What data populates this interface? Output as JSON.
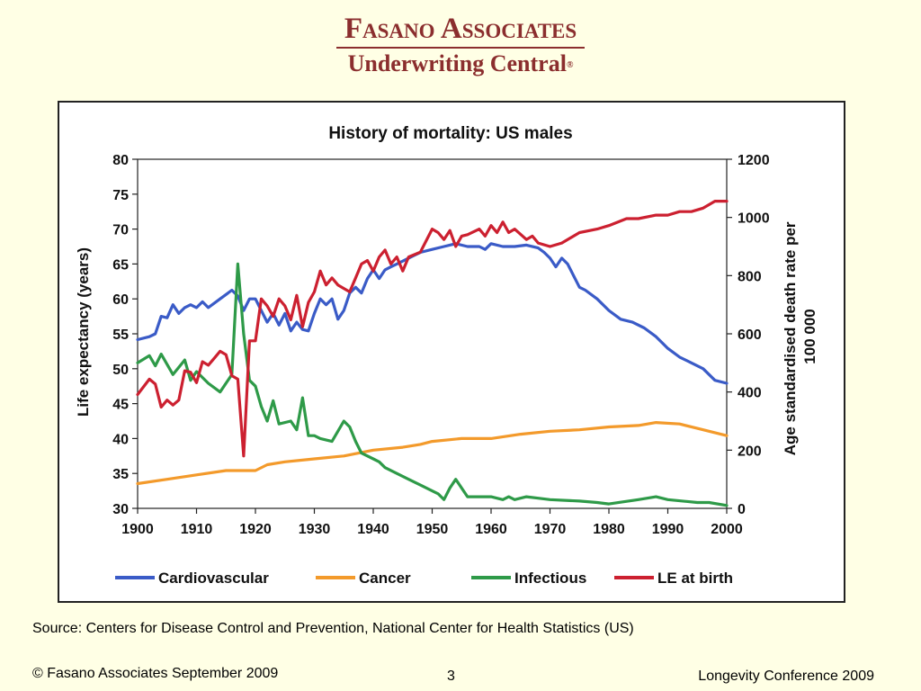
{
  "brand": {
    "name": "Fasano Associates",
    "subtitle": "Underwriting Central",
    "registered": "®"
  },
  "source_note": "Source: Centers for Disease Control and Prevention, National Center for Health Statistics (US)",
  "footer": {
    "left": "© Fasano Associates  September 2009",
    "center": "3",
    "right": "Longevity Conference 2009"
  },
  "colors": {
    "brand": "#8B2E2E",
    "background": "#FFFFE5",
    "cardiovascular": "#3A5BC7",
    "cancer": "#F39A2B",
    "infectious": "#2E9A48",
    "le_at_birth": "#CC2030"
  },
  "chart_data": {
    "type": "line",
    "title": "History of mortality: US males",
    "xlabel": "",
    "ylabel_left": "Life expectancy (years)",
    "ylabel_right": "Age standardised death rate per 100 000",
    "xlim": [
      1900,
      2000
    ],
    "ylim_left": [
      30,
      80
    ],
    "ylim_right": [
      0,
      1200
    ],
    "x_ticks": [
      "1900",
      "1910",
      "1920",
      "1930",
      "1940",
      "1950",
      "1960",
      "1970",
      "1980",
      "1990",
      "2000"
    ],
    "y_left_ticks": [
      "30",
      "35",
      "40",
      "45",
      "50",
      "55",
      "60",
      "65",
      "70",
      "75",
      "80"
    ],
    "y_right_ticks": [
      "0",
      "200",
      "400",
      "600",
      "800",
      "1000",
      "1200"
    ],
    "grid": false,
    "legend_position": "bottom",
    "series": [
      {
        "name": "Cardiovascular",
        "axis": "right",
        "color": "#3A5BC7",
        "points": [
          [
            1900,
            580
          ],
          [
            1902,
            590
          ],
          [
            1903,
            600
          ],
          [
            1904,
            660
          ],
          [
            1905,
            655
          ],
          [
            1906,
            700
          ],
          [
            1907,
            670
          ],
          [
            1908,
            690
          ],
          [
            1909,
            700
          ],
          [
            1910,
            690
          ],
          [
            1911,
            710
          ],
          [
            1912,
            690
          ],
          [
            1914,
            720
          ],
          [
            1916,
            750
          ],
          [
            1917,
            730
          ],
          [
            1918,
            680
          ],
          [
            1919,
            720
          ],
          [
            1920,
            720
          ],
          [
            1921,
            680
          ],
          [
            1922,
            640
          ],
          [
            1923,
            670
          ],
          [
            1924,
            630
          ],
          [
            1925,
            670
          ],
          [
            1926,
            610
          ],
          [
            1927,
            640
          ],
          [
            1928,
            615
          ],
          [
            1929,
            610
          ],
          [
            1930,
            670
          ],
          [
            1931,
            720
          ],
          [
            1932,
            700
          ],
          [
            1933,
            720
          ],
          [
            1934,
            650
          ],
          [
            1935,
            680
          ],
          [
            1936,
            740
          ],
          [
            1937,
            760
          ],
          [
            1938,
            740
          ],
          [
            1939,
            790
          ],
          [
            1940,
            820
          ],
          [
            1941,
            790
          ],
          [
            1942,
            820
          ],
          [
            1943,
            830
          ],
          [
            1944,
            840
          ],
          [
            1945,
            850
          ],
          [
            1946,
            860
          ],
          [
            1947,
            870
          ],
          [
            1948,
            880
          ],
          [
            1950,
            890
          ],
          [
            1952,
            900
          ],
          [
            1954,
            910
          ],
          [
            1956,
            900
          ],
          [
            1958,
            900
          ],
          [
            1959,
            890
          ],
          [
            1960,
            910
          ],
          [
            1962,
            900
          ],
          [
            1964,
            900
          ],
          [
            1966,
            905
          ],
          [
            1968,
            895
          ],
          [
            1969,
            880
          ],
          [
            1970,
            860
          ],
          [
            1971,
            830
          ],
          [
            1972,
            860
          ],
          [
            1973,
            840
          ],
          [
            1975,
            760
          ],
          [
            1976,
            750
          ],
          [
            1978,
            720
          ],
          [
            1980,
            680
          ],
          [
            1982,
            650
          ],
          [
            1984,
            640
          ],
          [
            1986,
            620
          ],
          [
            1988,
            590
          ],
          [
            1990,
            550
          ],
          [
            1992,
            520
          ],
          [
            1994,
            500
          ],
          [
            1996,
            480
          ],
          [
            1998,
            440
          ],
          [
            2000,
            430
          ]
        ]
      },
      {
        "name": "Cancer",
        "axis": "right",
        "color": "#F39A2B",
        "points": [
          [
            1900,
            85
          ],
          [
            1905,
            100
          ],
          [
            1910,
            115
          ],
          [
            1915,
            130
          ],
          [
            1920,
            130
          ],
          [
            1922,
            150
          ],
          [
            1925,
            160
          ],
          [
            1930,
            170
          ],
          [
            1935,
            180
          ],
          [
            1940,
            200
          ],
          [
            1945,
            210
          ],
          [
            1948,
            220
          ],
          [
            1950,
            230
          ],
          [
            1955,
            240
          ],
          [
            1960,
            240
          ],
          [
            1965,
            255
          ],
          [
            1970,
            265
          ],
          [
            1975,
            270
          ],
          [
            1980,
            280
          ],
          [
            1985,
            285
          ],
          [
            1988,
            295
          ],
          [
            1992,
            290
          ],
          [
            1995,
            275
          ],
          [
            2000,
            250
          ]
        ]
      },
      {
        "name": "Infectious",
        "axis": "right",
        "color": "#2E9A48",
        "points": [
          [
            1900,
            500
          ],
          [
            1902,
            525
          ],
          [
            1903,
            490
          ],
          [
            1904,
            530
          ],
          [
            1906,
            460
          ],
          [
            1908,
            510
          ],
          [
            1909,
            440
          ],
          [
            1910,
            470
          ],
          [
            1912,
            430
          ],
          [
            1914,
            400
          ],
          [
            1916,
            460
          ],
          [
            1917,
            840
          ],
          [
            1918,
            600
          ],
          [
            1919,
            440
          ],
          [
            1920,
            420
          ],
          [
            1921,
            350
          ],
          [
            1922,
            300
          ],
          [
            1923,
            370
          ],
          [
            1924,
            290
          ],
          [
            1926,
            300
          ],
          [
            1927,
            270
          ],
          [
            1928,
            380
          ],
          [
            1929,
            250
          ],
          [
            1930,
            250
          ],
          [
            1931,
            240
          ],
          [
            1933,
            230
          ],
          [
            1935,
            300
          ],
          [
            1936,
            280
          ],
          [
            1937,
            230
          ],
          [
            1938,
            190
          ],
          [
            1940,
            170
          ],
          [
            1941,
            160
          ],
          [
            1942,
            140
          ],
          [
            1944,
            120
          ],
          [
            1946,
            100
          ],
          [
            1948,
            80
          ],
          [
            1950,
            60
          ],
          [
            1951,
            50
          ],
          [
            1952,
            30
          ],
          [
            1953,
            70
          ],
          [
            1954,
            100
          ],
          [
            1956,
            40
          ],
          [
            1958,
            40
          ],
          [
            1960,
            40
          ],
          [
            1962,
            30
          ],
          [
            1963,
            40
          ],
          [
            1964,
            30
          ],
          [
            1966,
            40
          ],
          [
            1968,
            35
          ],
          [
            1970,
            30
          ],
          [
            1975,
            25
          ],
          [
            1978,
            20
          ],
          [
            1980,
            15
          ],
          [
            1985,
            30
          ],
          [
            1988,
            40
          ],
          [
            1990,
            30
          ],
          [
            1995,
            20
          ],
          [
            1997,
            20
          ],
          [
            2000,
            10
          ]
        ]
      },
      {
        "name": "LE at birth",
        "axis": "left",
        "color": "#CC2030",
        "points": [
          [
            1900,
            46.3
          ],
          [
            1902,
            48.5
          ],
          [
            1903,
            47.8
          ],
          [
            1904,
            44.5
          ],
          [
            1905,
            45.5
          ],
          [
            1906,
            44.8
          ],
          [
            1907,
            45.5
          ],
          [
            1908,
            49.7
          ],
          [
            1909,
            49.5
          ],
          [
            1910,
            48
          ],
          [
            1911,
            51
          ],
          [
            1912,
            50.5
          ],
          [
            1913,
            51.5
          ],
          [
            1914,
            52.5
          ],
          [
            1915,
            52
          ],
          [
            1916,
            49
          ],
          [
            1917,
            48.5
          ],
          [
            1918,
            37.5
          ],
          [
            1919,
            54
          ],
          [
            1920,
            54
          ],
          [
            1921,
            60
          ],
          [
            1922,
            59
          ],
          [
            1923,
            57.5
          ],
          [
            1924,
            60
          ],
          [
            1925,
            59
          ],
          [
            1926,
            57
          ],
          [
            1927,
            60.5
          ],
          [
            1928,
            56
          ],
          [
            1929,
            59.5
          ],
          [
            1930,
            61
          ],
          [
            1931,
            64
          ],
          [
            1932,
            62
          ],
          [
            1933,
            63
          ],
          [
            1934,
            62
          ],
          [
            1935,
            61.5
          ],
          [
            1936,
            61
          ],
          [
            1937,
            63
          ],
          [
            1938,
            65
          ],
          [
            1939,
            65.5
          ],
          [
            1940,
            64
          ],
          [
            1941,
            66
          ],
          [
            1942,
            67
          ],
          [
            1943,
            65
          ],
          [
            1944,
            66
          ],
          [
            1945,
            64
          ],
          [
            1946,
            66
          ],
          [
            1948,
            66.7
          ],
          [
            1950,
            70
          ],
          [
            1951,
            69.5
          ],
          [
            1952,
            68.5
          ],
          [
            1953,
            69.8
          ],
          [
            1954,
            67.5
          ],
          [
            1955,
            69
          ],
          [
            1956,
            69.2
          ],
          [
            1958,
            70
          ],
          [
            1959,
            69
          ],
          [
            1960,
            70.5
          ],
          [
            1961,
            69.5
          ],
          [
            1962,
            71
          ],
          [
            1963,
            69.5
          ],
          [
            1964,
            70
          ],
          [
            1966,
            68.5
          ],
          [
            1967,
            69
          ],
          [
            1968,
            68
          ],
          [
            1970,
            67.5
          ],
          [
            1972,
            68
          ],
          [
            1975,
            69.5
          ],
          [
            1978,
            70
          ],
          [
            1980,
            70.5
          ],
          [
            1983,
            71.5
          ],
          [
            1985,
            71.5
          ],
          [
            1988,
            72
          ],
          [
            1990,
            72
          ],
          [
            1992,
            72.5
          ],
          [
            1994,
            72.5
          ],
          [
            1996,
            73
          ],
          [
            1998,
            74
          ],
          [
            2000,
            74
          ]
        ]
      }
    ]
  }
}
